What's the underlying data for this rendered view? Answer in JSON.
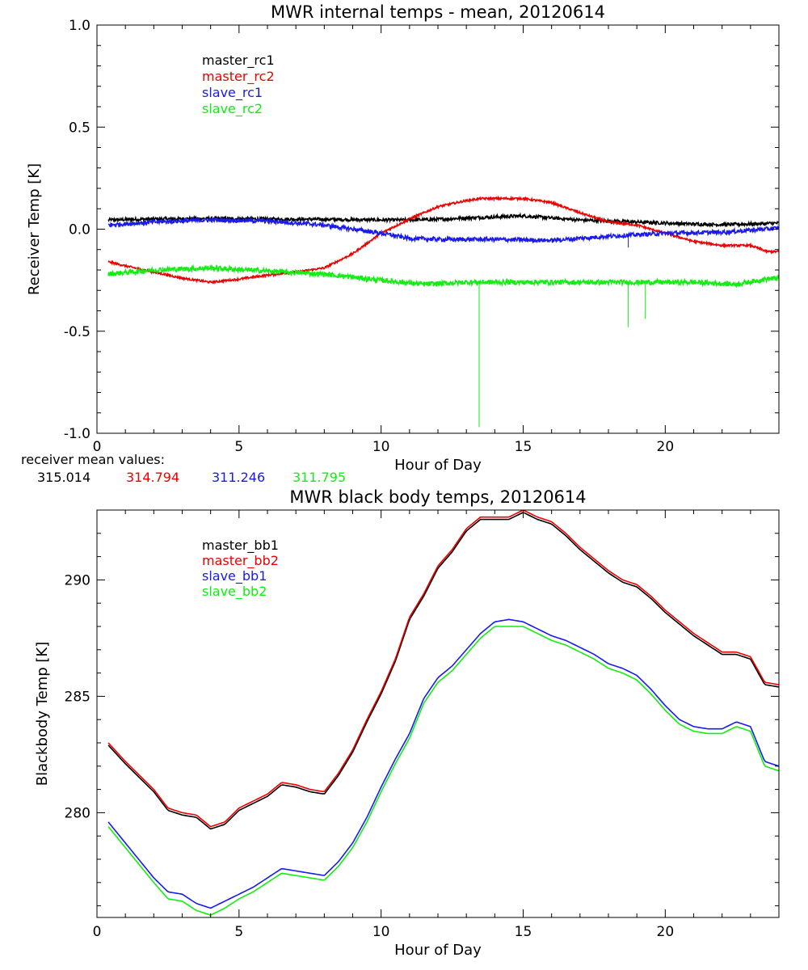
{
  "colors": {
    "black": "#000000",
    "red": "#ee0000",
    "blue": "#1a1aee",
    "green": "#11ee11"
  },
  "chart_data": [
    {
      "type": "line",
      "title": "MWR internal temps - mean, 20120614",
      "xlabel": "Hour of Day",
      "ylabel": "Receiver Temp [K]",
      "xlim": [
        0,
        24
      ],
      "ylim": [
        -1.0,
        1.0
      ],
      "xticks": [
        "0",
        "5",
        "10",
        "15",
        "20"
      ],
      "yticks": [
        "1.0",
        "0.5",
        "0.0",
        "-0.5",
        "-1.0"
      ],
      "grid": false,
      "legend_position": "top-left",
      "series": [
        {
          "name": "master_rc1",
          "color": "#000000",
          "x": [
            0.4,
            2,
            4,
            6,
            8,
            10,
            11,
            12,
            13,
            14,
            15,
            16,
            17,
            18,
            19,
            20,
            21,
            22,
            23,
            24
          ],
          "y": [
            0.045,
            0.05,
            0.052,
            0.05,
            0.048,
            0.045,
            0.045,
            0.048,
            0.055,
            0.06,
            0.065,
            0.055,
            0.045,
            0.04,
            0.035,
            0.03,
            0.025,
            0.022,
            0.025,
            0.03
          ],
          "noise": 0.008
        },
        {
          "name": "master_rc2",
          "color": "#ee0000",
          "x": [
            0.4,
            1,
            2,
            3,
            4,
            5,
            6,
            7,
            8,
            9,
            10,
            11,
            12,
            13,
            13.5,
            14,
            15,
            16,
            17,
            18,
            19,
            20,
            21,
            22,
            23,
            23.6,
            24
          ],
          "y": [
            -0.16,
            -0.18,
            -0.21,
            -0.24,
            -0.26,
            -0.245,
            -0.225,
            -0.21,
            -0.19,
            -0.12,
            -0.02,
            0.05,
            0.11,
            0.14,
            0.15,
            0.15,
            0.15,
            0.13,
            0.08,
            0.035,
            0.02,
            -0.02,
            -0.06,
            -0.08,
            -0.08,
            -0.11,
            -0.11
          ],
          "noise": 0.005
        },
        {
          "name": "slave_rc1",
          "color": "#1a1aee",
          "x": [
            0.4,
            2,
            4,
            6,
            8,
            10,
            11,
            12,
            14,
            16,
            18,
            20,
            22,
            24
          ],
          "y": [
            0.02,
            0.035,
            0.045,
            0.04,
            0.02,
            -0.02,
            -0.045,
            -0.05,
            -0.05,
            -0.055,
            -0.035,
            -0.02,
            -0.015,
            0.005
          ],
          "noise": 0.01,
          "spikes": [
            {
              "x": 18.7,
              "y": -0.09
            }
          ]
        },
        {
          "name": "slave_rc2",
          "color": "#11ee11",
          "x": [
            0.4,
            2,
            4,
            6,
            8,
            10,
            11.5,
            13,
            15,
            17,
            19,
            21,
            22.5,
            23.5,
            24
          ],
          "y": [
            -0.22,
            -0.2,
            -0.19,
            -0.205,
            -0.22,
            -0.25,
            -0.27,
            -0.26,
            -0.26,
            -0.26,
            -0.26,
            -0.26,
            -0.27,
            -0.245,
            -0.24
          ],
          "noise": 0.012,
          "spikes": [
            {
              "x": 13.45,
              "y": -0.97
            },
            {
              "x": 18.7,
              "y": -0.48
            },
            {
              "x": 19.3,
              "y": -0.44
            }
          ]
        }
      ]
    },
    {
      "type": "line",
      "title": "MWR black body temps, 20120614",
      "xlabel": "Hour of Day",
      "ylabel": "Blackbody Temp [K]",
      "xlim": [
        0,
        24
      ],
      "ylim": [
        275.5,
        293
      ],
      "xticks": [
        "0",
        "5",
        "10",
        "15",
        "20"
      ],
      "yticks": [
        "290",
        "285",
        "280"
      ],
      "grid": false,
      "legend_position": "top-left",
      "series": [
        {
          "name": "master_bb1",
          "color": "#000000",
          "x": [
            0.4,
            1,
            2,
            2.5,
            3,
            3.5,
            4,
            4.5,
            5,
            5.5,
            6,
            6.5,
            7,
            7.5,
            8,
            8.5,
            9,
            9.5,
            10,
            10.5,
            11,
            11.5,
            12,
            12.5,
            13,
            13.5,
            14,
            14.5,
            15,
            15.5,
            16,
            16.5,
            17,
            17.5,
            18,
            18.5,
            19,
            19.5,
            20,
            20.5,
            21,
            21.5,
            22,
            22.5,
            23,
            23.5,
            24
          ],
          "y": [
            282.9,
            282.1,
            280.9,
            280.1,
            279.9,
            279.8,
            279.3,
            279.5,
            280.1,
            280.4,
            280.7,
            281.2,
            281.1,
            280.9,
            280.8,
            281.6,
            282.6,
            283.9,
            285.1,
            286.5,
            288.3,
            289.3,
            290.5,
            291.2,
            292.1,
            292.6,
            292.6,
            292.6,
            292.9,
            292.6,
            292.4,
            291.9,
            291.3,
            290.8,
            290.3,
            289.9,
            289.7,
            289.2,
            288.6,
            288.1,
            287.6,
            287.2,
            286.8,
            286.8,
            286.6,
            285.5,
            285.4
          ],
          "offset": 0
        },
        {
          "name": "master_bb2",
          "color": "#ee0000",
          "x": [
            0.4,
            1,
            2,
            2.5,
            3,
            3.5,
            4,
            4.5,
            5,
            5.5,
            6,
            6.5,
            7,
            7.5,
            8,
            8.5,
            9,
            9.5,
            10,
            10.5,
            11,
            11.5,
            12,
            12.5,
            13,
            13.5,
            14,
            14.5,
            15,
            15.5,
            16,
            16.5,
            17,
            17.5,
            18,
            18.5,
            19,
            19.5,
            20,
            20.5,
            21,
            21.5,
            22,
            22.5,
            23,
            23.5,
            24
          ],
          "y": [
            283.0,
            282.2,
            281.0,
            280.2,
            280.0,
            279.9,
            279.4,
            279.6,
            280.2,
            280.5,
            280.8,
            281.3,
            281.2,
            281.0,
            280.9,
            281.7,
            282.7,
            284.0,
            285.2,
            286.6,
            288.4,
            289.4,
            290.6,
            291.3,
            292.2,
            292.7,
            292.7,
            292.7,
            293.0,
            292.7,
            292.5,
            292.0,
            291.4,
            290.9,
            290.4,
            290.0,
            289.8,
            289.3,
            288.7,
            288.2,
            287.7,
            287.3,
            286.9,
            286.9,
            286.7,
            285.6,
            285.5
          ]
        },
        {
          "name": "slave_bb1",
          "color": "#1a1aee",
          "x": [
            0.4,
            1,
            2,
            2.5,
            3,
            3.5,
            4,
            4.5,
            5,
            5.5,
            6,
            6.5,
            7,
            7.5,
            8,
            8.5,
            9,
            9.5,
            10,
            10.5,
            11,
            11.5,
            12,
            12.5,
            13,
            13.5,
            14,
            14.5,
            15,
            15.5,
            16,
            16.5,
            17,
            17.5,
            18,
            18.5,
            19,
            19.5,
            20,
            20.5,
            21,
            21.5,
            22,
            22.5,
            23,
            23.5,
            24
          ],
          "y": [
            279.6,
            278.7,
            277.2,
            276.6,
            276.5,
            276.1,
            275.9,
            276.2,
            276.5,
            276.8,
            277.2,
            277.6,
            277.5,
            277.4,
            277.3,
            277.9,
            278.7,
            279.8,
            281.1,
            282.3,
            283.4,
            284.9,
            285.8,
            286.3,
            287.0,
            287.7,
            288.2,
            288.3,
            288.2,
            287.9,
            287.6,
            287.4,
            287.1,
            286.8,
            286.4,
            286.2,
            285.9,
            285.3,
            284.6,
            284.0,
            283.7,
            283.6,
            283.6,
            283.9,
            283.7,
            282.2,
            282.0
          ]
        },
        {
          "name": "slave_bb2",
          "color": "#11ee11",
          "x": [
            0.4,
            1,
            2,
            2.5,
            3,
            3.5,
            4,
            4.5,
            5,
            5.5,
            6,
            6.5,
            7,
            7.5,
            8,
            8.5,
            9,
            9.5,
            10,
            10.5,
            11,
            11.5,
            12,
            12.5,
            13,
            13.5,
            14,
            14.5,
            15,
            15.5,
            16,
            16.5,
            17,
            17.5,
            18,
            18.5,
            19,
            19.5,
            20,
            20.5,
            21,
            21.5,
            22,
            22.5,
            23,
            23.5,
            24
          ],
          "y": [
            279.4,
            278.5,
            277.0,
            276.3,
            276.2,
            275.8,
            275.6,
            275.9,
            276.3,
            276.6,
            277.0,
            277.4,
            277.3,
            277.2,
            277.1,
            277.7,
            278.5,
            279.6,
            280.9,
            282.1,
            283.2,
            284.7,
            285.6,
            286.1,
            286.8,
            287.5,
            288.0,
            288.0,
            288.0,
            287.7,
            287.4,
            287.2,
            286.9,
            286.6,
            286.2,
            286.0,
            285.7,
            285.1,
            284.4,
            283.8,
            283.5,
            283.4,
            283.4,
            283.7,
            283.5,
            282.0,
            281.8
          ]
        }
      ]
    }
  ],
  "mean_values": {
    "label": "receiver mean values:",
    "values": [
      {
        "text": "315.014",
        "color": "#000000"
      },
      {
        "text": "314.794",
        "color": "#ee0000"
      },
      {
        "text": "311.246",
        "color": "#1a1aee"
      },
      {
        "text": "311.795",
        "color": "#11ee11"
      }
    ]
  }
}
